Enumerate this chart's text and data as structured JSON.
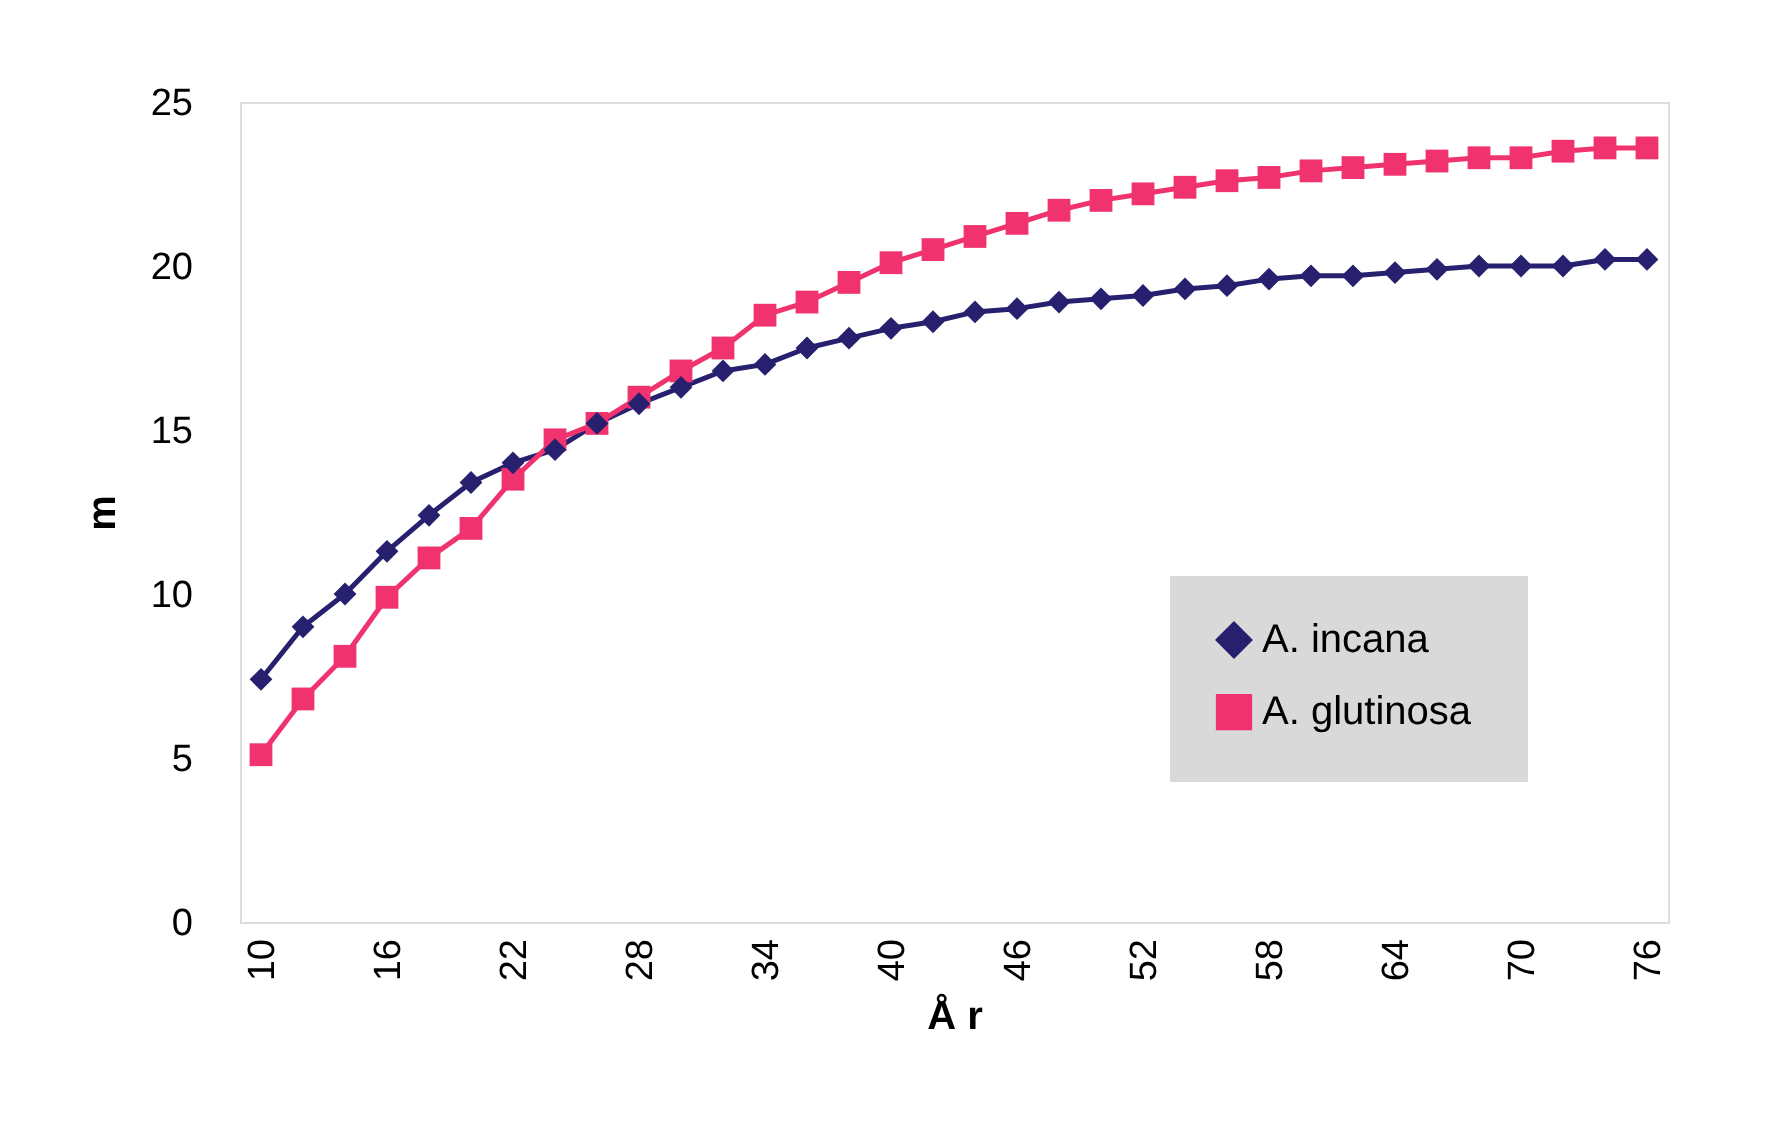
{
  "chart_data": {
    "type": "line",
    "xlabel": "Å r",
    "ylabel": "m",
    "x": [
      10,
      12,
      14,
      16,
      18,
      20,
      22,
      24,
      26,
      28,
      30,
      32,
      34,
      36,
      38,
      40,
      42,
      44,
      46,
      48,
      50,
      52,
      54,
      56,
      58,
      60,
      62,
      64,
      66,
      68,
      70,
      72,
      74,
      76
    ],
    "series": [
      {
        "name": "A. incana",
        "color": "#26206e",
        "marker": "diamond",
        "values": [
          7.4,
          9.0,
          10.0,
          11.3,
          12.4,
          13.4,
          14.0,
          14.4,
          15.2,
          15.8,
          16.3,
          16.8,
          17.0,
          17.5,
          17.8,
          18.1,
          18.3,
          18.6,
          18.7,
          18.9,
          19.0,
          19.1,
          19.3,
          19.4,
          19.6,
          19.7,
          19.7,
          19.8,
          19.9,
          20.0,
          20.0,
          20.0,
          20.2,
          20.2
        ]
      },
      {
        "name": "A.  glutinosa",
        "color": "#f0336f",
        "marker": "square",
        "values": [
          5.1,
          6.8,
          8.1,
          9.9,
          11.1,
          12.0,
          13.5,
          14.7,
          15.2,
          16.0,
          16.8,
          17.5,
          18.5,
          18.9,
          19.5,
          20.1,
          20.5,
          20.9,
          21.3,
          21.7,
          22.0,
          22.2,
          22.4,
          22.6,
          22.7,
          22.9,
          23.0,
          23.1,
          23.2,
          23.3,
          23.3,
          23.5,
          23.6,
          23.6
        ]
      }
    ],
    "xlim": [
      9,
      77
    ],
    "xticks": [
      10,
      16,
      22,
      28,
      34,
      40,
      46,
      52,
      58,
      64,
      70,
      76
    ],
    "ylim": [
      0,
      25
    ],
    "yticks": [
      0,
      5,
      10,
      15,
      20,
      25
    ],
    "grid": false,
    "legend": "bottom right",
    "line_style": "solid"
  }
}
